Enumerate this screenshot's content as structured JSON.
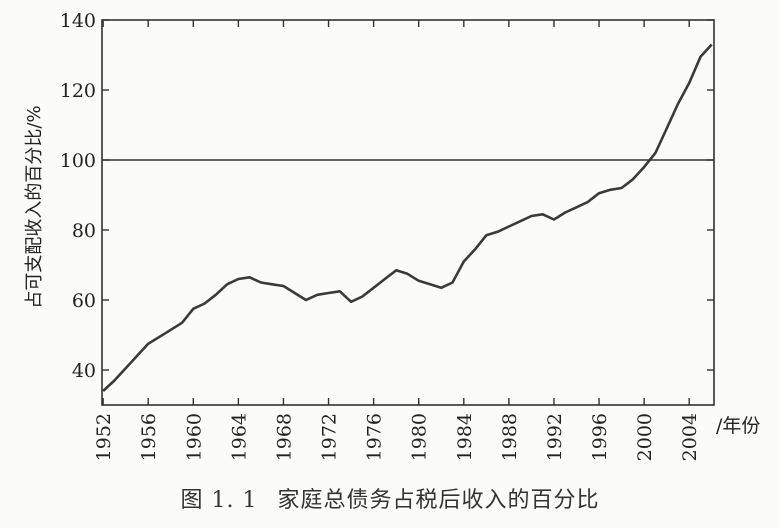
{
  "figure": {
    "number": "图 1. 1",
    "caption": "家庭总债务占税后收入的百分比"
  },
  "chart_data": {
    "type": "line",
    "title": "",
    "ylabel": "占可支配收入的百分比/%",
    "xlabel": "/年份",
    "xlim": [
      1951.9,
      2006.2
    ],
    "ylim": [
      30,
      140
    ],
    "x_ticks": [
      1952,
      1956,
      1960,
      1964,
      1968,
      1972,
      1976,
      1980,
      1984,
      1988,
      1992,
      1996,
      2000,
      2004
    ],
    "y_ticks": [
      40,
      60,
      80,
      100,
      120,
      140
    ],
    "reference_line": 100,
    "grid": false,
    "series": [
      {
        "x": [
          1952,
          1953,
          1954,
          1955,
          1956,
          1957,
          1958,
          1959,
          1960,
          1961,
          1962,
          1963,
          1964,
          1965,
          1966,
          1967,
          1968,
          1969,
          1970,
          1971,
          1972,
          1973,
          1974,
          1975,
          1976,
          1977,
          1978,
          1979,
          1980,
          1981,
          1982,
          1983,
          1984,
          1985,
          1986,
          1987,
          1988,
          1989,
          1990,
          1991,
          1992,
          1993,
          1994,
          1995,
          1996,
          1997,
          1998,
          1999,
          2000,
          2001,
          2002,
          2003,
          2004,
          2005,
          2006
        ],
        "values": [
          34,
          37,
          40.5,
          44,
          47.5,
          49.5,
          51.5,
          53.5,
          57.5,
          59,
          61.5,
          64.5,
          66,
          66.5,
          65,
          64.5,
          64,
          62,
          60,
          61.5,
          62,
          62.5,
          59.5,
          61,
          63.5,
          66,
          68.5,
          67.5,
          65.5,
          64.5,
          63.5,
          65,
          71,
          74.5,
          78.5,
          79.5,
          81,
          82.5,
          84,
          84.5,
          83,
          85,
          86.5,
          88,
          90.5,
          91.5,
          92,
          94.5,
          98,
          102,
          109,
          116,
          122,
          129.5,
          133
        ]
      }
    ]
  }
}
